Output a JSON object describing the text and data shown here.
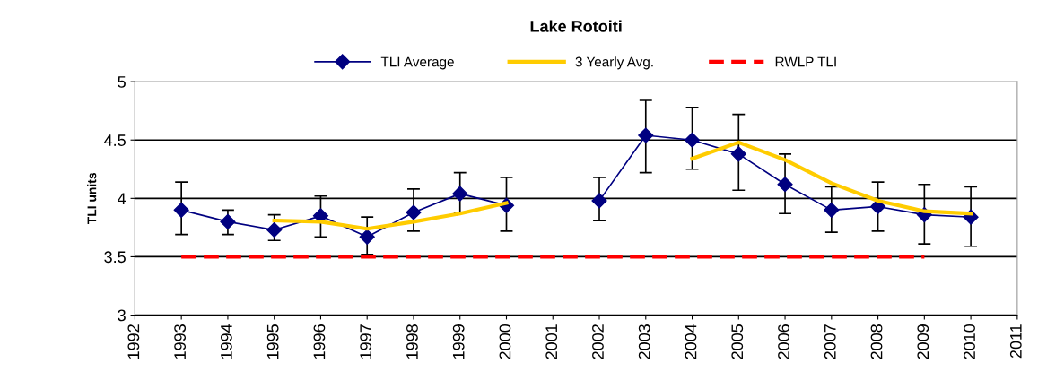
{
  "chart_data": {
    "type": "line",
    "title": "Lake Rotoiti",
    "ylabel": "TLI units",
    "x": [
      1993,
      1994,
      1995,
      1996,
      1997,
      1998,
      1999,
      2000,
      2001,
      2002,
      2003,
      2004,
      2005,
      2006,
      2007,
      2008,
      2009,
      2010
    ],
    "series": [
      {
        "name": "TLI Average",
        "color": "#000080",
        "marker": "diamond",
        "line_style": "solid",
        "values": [
          3.9,
          3.8,
          3.73,
          3.85,
          3.67,
          3.88,
          4.04,
          3.94,
          null,
          3.98,
          4.54,
          4.5,
          4.38,
          4.12,
          3.9,
          3.93,
          3.86,
          3.84
        ],
        "errors": [
          [
            3.69,
            4.14
          ],
          [
            3.69,
            3.9
          ],
          [
            3.64,
            3.86
          ],
          [
            3.67,
            4.02
          ],
          [
            3.52,
            3.84
          ],
          [
            3.72,
            4.08
          ],
          [
            3.88,
            4.22
          ],
          [
            3.72,
            4.18
          ],
          null,
          [
            3.81,
            4.18
          ],
          [
            4.22,
            4.84
          ],
          [
            4.25,
            4.78
          ],
          [
            4.07,
            4.72
          ],
          [
            3.87,
            4.38
          ],
          [
            3.71,
            4.1
          ],
          [
            3.72,
            4.14
          ],
          [
            3.61,
            4.12
          ],
          [
            3.59,
            4.1
          ]
        ]
      },
      {
        "name": "3 Yearly Avg.",
        "color": "#ffcc00",
        "marker": "none",
        "line_style": "solid",
        "values": [
          null,
          null,
          3.81,
          3.8,
          3.74,
          3.8,
          3.87,
          3.96,
          null,
          null,
          null,
          4.34,
          4.48,
          4.33,
          4.13,
          3.98,
          3.89,
          3.87
        ]
      },
      {
        "name": "RWLP TLI",
        "color": "#ff0000",
        "marker": "none",
        "line_style": "dashed",
        "values": [
          3.5,
          3.5,
          3.5,
          3.5,
          3.5,
          3.5,
          3.5,
          3.5,
          3.5,
          3.5,
          3.5,
          3.5,
          3.5,
          3.5,
          3.5,
          3.5,
          3.5,
          null
        ]
      }
    ],
    "xlim": [
      1992,
      2011
    ],
    "xticks": [
      1992,
      1993,
      1994,
      1995,
      1996,
      1997,
      1998,
      1999,
      2000,
      2001,
      2002,
      2003,
      2004,
      2005,
      2006,
      2007,
      2008,
      2009,
      2010,
      2011
    ],
    "ylim": [
      3,
      5
    ],
    "yticks": [
      3,
      3.5,
      4,
      4.5,
      5
    ],
    "grid": "y",
    "legend": "top"
  }
}
